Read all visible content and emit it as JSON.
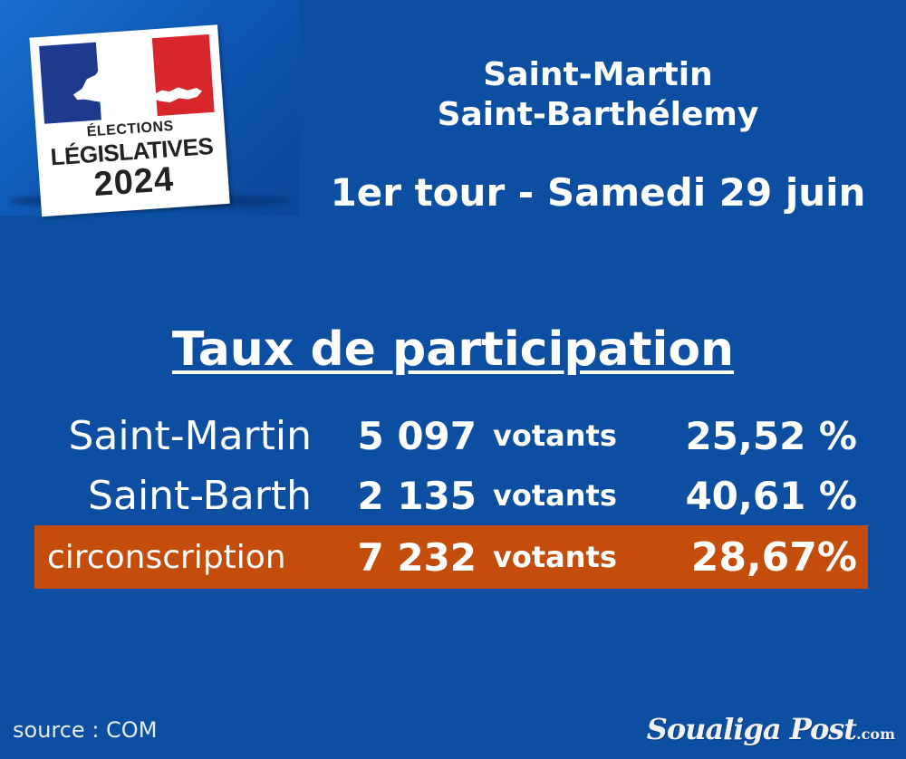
{
  "logo": {
    "line1": "ÉLECTIONS",
    "line2": "LÉGISLATIVES",
    "line3": "2024",
    "flag_colors": [
      "#1d3a8f",
      "#ffffff",
      "#d7262c"
    ]
  },
  "header": {
    "line1": "Saint-Martin",
    "line2": "Saint-Barthélemy",
    "line3": "1er tour - Samedi 29 juin"
  },
  "title": "Taux de participation",
  "rows": [
    {
      "name": "Saint-Martin",
      "votes": "5 097",
      "unit": "votants",
      "rate": "25,52 %"
    },
    {
      "name": "Saint-Barth",
      "votes": "2 135",
      "unit": "votants",
      "rate": "40,61 %"
    },
    {
      "name": "circonscription",
      "votes": "7 232",
      "unit": "votants",
      "rate": "28,67%"
    }
  ],
  "highlight_color": "#c54d0c",
  "background_color": "#0b4ea2",
  "footer": {
    "source": "source : COM",
    "brand": "Soualiga Post",
    "brand_tld": ".com"
  }
}
